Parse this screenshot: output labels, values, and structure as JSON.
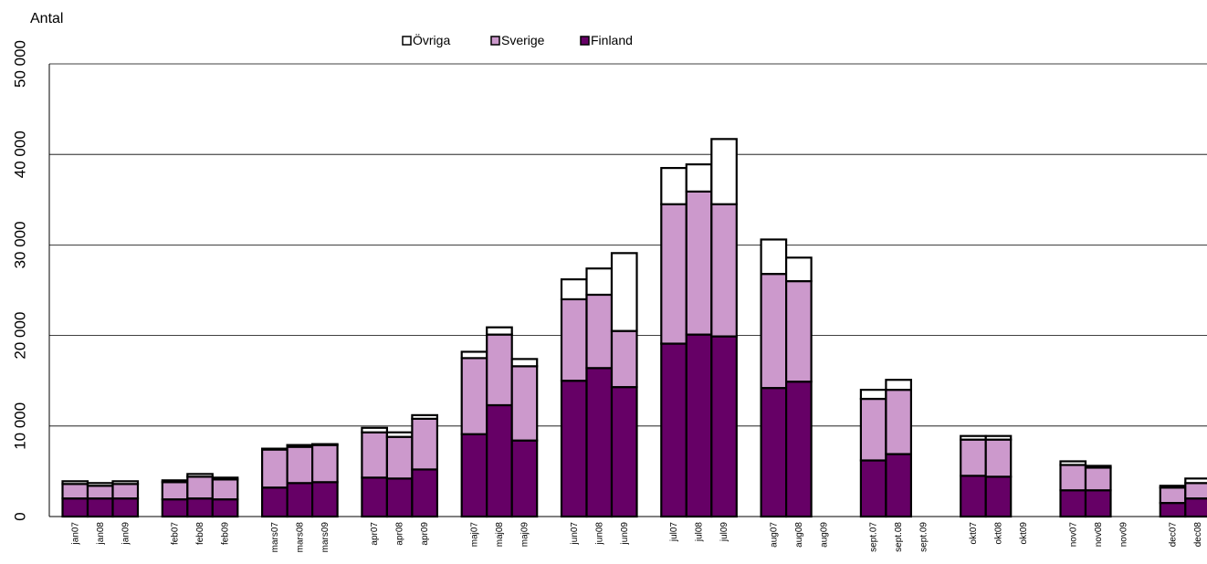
{
  "chart_data": {
    "type": "bar",
    "stacked": true,
    "title": "",
    "ylabel": "Antal",
    "xlabel": "",
    "ylim": [
      0,
      50000
    ],
    "yticks": [
      0,
      10000,
      20000,
      30000,
      40000,
      50000
    ],
    "ytick_labels": [
      "0",
      "10 000",
      "20 000",
      "30 000",
      "40 000",
      "50 000"
    ],
    "grid": true,
    "legend_position": "top-center",
    "legend_order": [
      "Övriga",
      "Sverige",
      "Finland"
    ],
    "groups": [
      {
        "months": [
          "jan07",
          "jan08",
          "jan09"
        ]
      },
      {
        "months": [
          "feb07",
          "feb08",
          "feb09"
        ]
      },
      {
        "months": [
          "mars07",
          "mars08",
          "mars09"
        ]
      },
      {
        "months": [
          "apr07",
          "apr08",
          "apr09"
        ]
      },
      {
        "months": [
          "maj07",
          "maj08",
          "maj09"
        ]
      },
      {
        "months": [
          "jun07",
          "jun08",
          "jun09"
        ]
      },
      {
        "months": [
          "jul07",
          "jul08",
          "jul09"
        ]
      },
      {
        "months": [
          "aug07",
          "aug08",
          "aug09"
        ]
      },
      {
        "months": [
          "sept.07",
          "sept.08",
          "sept.09"
        ]
      },
      {
        "months": [
          "okt07",
          "okt08",
          "okt09"
        ]
      },
      {
        "months": [
          "nov07",
          "nov08",
          "nov09"
        ]
      },
      {
        "months": [
          "dec07",
          "dec08",
          "dec09"
        ]
      }
    ],
    "series": [
      {
        "name": "Finland",
        "color": "#660066",
        "values": [
          [
            2000,
            2000,
            2000
          ],
          [
            1900,
            2000,
            1900
          ],
          [
            3200,
            3700,
            3800
          ],
          [
            4300,
            4200,
            5200
          ],
          [
            9100,
            12300,
            8400
          ],
          [
            15000,
            16400,
            14300
          ],
          [
            19100,
            20100,
            19900
          ],
          [
            14200,
            14900,
            0
          ],
          [
            6200,
            6900,
            0
          ],
          [
            4500,
            4400,
            0
          ],
          [
            2900,
            2900,
            0
          ],
          [
            1500,
            2000,
            0
          ]
        ]
      },
      {
        "name": "Sverige",
        "color": "#cc99cc",
        "values": [
          [
            1600,
            1400,
            1600
          ],
          [
            1900,
            2400,
            2200
          ],
          [
            4200,
            4000,
            4100
          ],
          [
            5000,
            4600,
            5600
          ],
          [
            8400,
            7800,
            8200
          ],
          [
            9000,
            8100,
            6200
          ],
          [
            15400,
            15800,
            14600
          ],
          [
            12600,
            11100,
            0
          ],
          [
            6800,
            7100,
            0
          ],
          [
            4000,
            4100,
            0
          ],
          [
            2800,
            2500,
            0
          ],
          [
            1700,
            1700,
            0
          ]
        ]
      },
      {
        "name": "Övriga",
        "color": "#ffffff",
        "values": [
          [
            300,
            300,
            300
          ],
          [
            200,
            300,
            200
          ],
          [
            100,
            200,
            100
          ],
          [
            500,
            500,
            400
          ],
          [
            700,
            800,
            800
          ],
          [
            2200,
            2900,
            8600
          ],
          [
            4000,
            3000,
            7200
          ],
          [
            3800,
            2600,
            0
          ],
          [
            1000,
            1100,
            0
          ],
          [
            400,
            400,
            0
          ],
          [
            400,
            200,
            0
          ],
          [
            200,
            500,
            0
          ]
        ]
      }
    ]
  }
}
